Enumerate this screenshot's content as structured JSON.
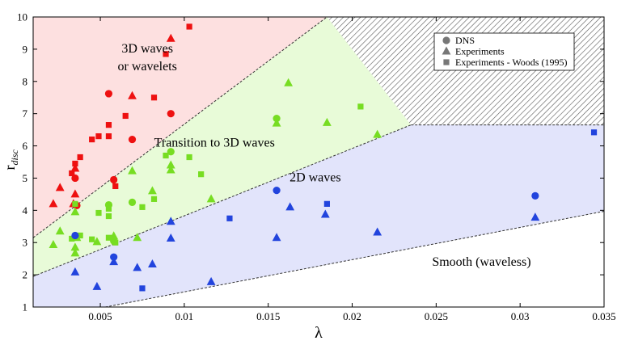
{
  "chart_data": {
    "type": "scatter",
    "title": "",
    "xlabel": "λ",
    "ylabel_main": "r",
    "ylabel_sub": "disc",
    "xlim": [
      0.001,
      0.035
    ],
    "ylim": [
      1,
      10
    ],
    "xticks": [
      0.005,
      0.01,
      0.015,
      0.02,
      0.025,
      0.03,
      0.035
    ],
    "xtick_labels": [
      "0.005",
      "0.01",
      "0.015",
      "0.02",
      "0.025",
      "0.03",
      "0.035"
    ],
    "yticks": [
      1,
      2,
      3,
      4,
      5,
      6,
      7,
      8,
      9,
      10
    ],
    "ytick_labels": [
      "1",
      "2",
      "3",
      "4",
      "5",
      "6",
      "7",
      "8",
      "9",
      "10"
    ],
    "grid": false,
    "legend": {
      "position": "top-right",
      "entries": [
        {
          "marker": "circle",
          "label": "DNS"
        },
        {
          "marker": "triangle",
          "label": "Experiments"
        },
        {
          "marker": "square",
          "label": "Experiments - Woods (1995)"
        }
      ]
    },
    "colors": {
      "red_points": "#ee1111",
      "green_points": "#77dd22",
      "blue_points": "#2244dd",
      "red_region": "#fde0e0",
      "green_region": "#e8fbd8",
      "blue_region": "#e2e4fb",
      "hatch": "#555555",
      "boundary": "#333333"
    },
    "boundaries": [
      {
        "name": "upper",
        "x": [
          0.001,
          0.0185
        ],
        "y": [
          3.15,
          10
        ]
      },
      {
        "name": "middle",
        "x": [
          0.001,
          0.0235
        ],
        "y": [
          1.95,
          6.65
        ]
      },
      {
        "name": "plateau",
        "x": [
          0.0235,
          0.035
        ],
        "y": [
          6.65,
          6.65
        ]
      },
      {
        "name": "lower",
        "x": [
          0.0053,
          0.035
        ],
        "y": [
          1,
          3.97
        ]
      }
    ],
    "regions": [
      {
        "label_lines": [
          "3D waves",
          "or wavelets"
        ],
        "color": "red"
      },
      {
        "label_lines": [
          "Transition to 3D waves"
        ],
        "color": "green"
      },
      {
        "label_lines": [
          "2D waves"
        ],
        "color": "blue"
      },
      {
        "label_lines": [
          "Smooth (waveless)"
        ],
        "color": "white"
      }
    ],
    "series": [
      {
        "color": "red",
        "points": [
          {
            "x": 0.0055,
            "y": 7.62,
            "marker": "circle"
          },
          {
            "x": 0.0069,
            "y": 6.2,
            "marker": "circle"
          },
          {
            "x": 0.0092,
            "y": 7.0,
            "marker": "circle"
          },
          {
            "x": 0.0058,
            "y": 4.95,
            "marker": "circle"
          },
          {
            "x": 0.0035,
            "y": 5.0,
            "marker": "circle"
          },
          {
            "x": 0.0036,
            "y": 4.15,
            "marker": "circle"
          },
          {
            "x": 0.0092,
            "y": 9.33,
            "marker": "triangle"
          },
          {
            "x": 0.0069,
            "y": 7.55,
            "marker": "triangle"
          },
          {
            "x": 0.0035,
            "y": 5.3,
            "marker": "triangle"
          },
          {
            "x": 0.0026,
            "y": 4.7,
            "marker": "triangle"
          },
          {
            "x": 0.0035,
            "y": 4.5,
            "marker": "triangle"
          },
          {
            "x": 0.0022,
            "y": 4.2,
            "marker": "triangle"
          },
          {
            "x": 0.0034,
            "y": 4.2,
            "marker": "triangle"
          },
          {
            "x": 0.0103,
            "y": 9.7,
            "marker": "square"
          },
          {
            "x": 0.0089,
            "y": 8.85,
            "marker": "square"
          },
          {
            "x": 0.0082,
            "y": 7.5,
            "marker": "square"
          },
          {
            "x": 0.0055,
            "y": 6.65,
            "marker": "square"
          },
          {
            "x": 0.0065,
            "y": 6.93,
            "marker": "square"
          },
          {
            "x": 0.0045,
            "y": 6.2,
            "marker": "square"
          },
          {
            "x": 0.0049,
            "y": 6.3,
            "marker": "square"
          },
          {
            "x": 0.0055,
            "y": 6.3,
            "marker": "square"
          },
          {
            "x": 0.0038,
            "y": 5.65,
            "marker": "square"
          },
          {
            "x": 0.0035,
            "y": 5.45,
            "marker": "square"
          },
          {
            "x": 0.0033,
            "y": 5.15,
            "marker": "square"
          },
          {
            "x": 0.0059,
            "y": 4.75,
            "marker": "square"
          }
        ]
      },
      {
        "color": "green",
        "points": [
          {
            "x": 0.0155,
            "y": 6.85,
            "marker": "circle"
          },
          {
            "x": 0.0092,
            "y": 5.82,
            "marker": "circle"
          },
          {
            "x": 0.0055,
            "y": 4.17,
            "marker": "circle"
          },
          {
            "x": 0.0069,
            "y": 4.25,
            "marker": "circle"
          },
          {
            "x": 0.0058,
            "y": 3.05,
            "marker": "circle"
          },
          {
            "x": 0.0162,
            "y": 7.95,
            "marker": "triangle"
          },
          {
            "x": 0.0155,
            "y": 6.7,
            "marker": "triangle"
          },
          {
            "x": 0.0185,
            "y": 6.72,
            "marker": "triangle"
          },
          {
            "x": 0.0215,
            "y": 6.35,
            "marker": "triangle"
          },
          {
            "x": 0.0092,
            "y": 5.4,
            "marker": "triangle"
          },
          {
            "x": 0.0092,
            "y": 5.25,
            "marker": "triangle"
          },
          {
            "x": 0.0069,
            "y": 5.22,
            "marker": "triangle"
          },
          {
            "x": 0.0081,
            "y": 4.6,
            "marker": "triangle"
          },
          {
            "x": 0.0116,
            "y": 4.35,
            "marker": "triangle"
          },
          {
            "x": 0.0035,
            "y": 3.95,
            "marker": "triangle"
          },
          {
            "x": 0.0026,
            "y": 3.35,
            "marker": "triangle"
          },
          {
            "x": 0.0036,
            "y": 3.15,
            "marker": "triangle"
          },
          {
            "x": 0.0048,
            "y": 3.02,
            "marker": "triangle"
          },
          {
            "x": 0.0058,
            "y": 3.2,
            "marker": "triangle"
          },
          {
            "x": 0.0072,
            "y": 3.15,
            "marker": "triangle"
          },
          {
            "x": 0.0022,
            "y": 2.93,
            "marker": "triangle"
          },
          {
            "x": 0.0035,
            "y": 2.85,
            "marker": "triangle"
          },
          {
            "x": 0.0035,
            "y": 2.67,
            "marker": "triangle"
          },
          {
            "x": 0.0205,
            "y": 7.22,
            "marker": "square"
          },
          {
            "x": 0.0089,
            "y": 5.7,
            "marker": "square"
          },
          {
            "x": 0.0103,
            "y": 5.65,
            "marker": "square"
          },
          {
            "x": 0.011,
            "y": 5.12,
            "marker": "square"
          },
          {
            "x": 0.0035,
            "y": 4.2,
            "marker": "square"
          },
          {
            "x": 0.0055,
            "y": 4.05,
            "marker": "square"
          },
          {
            "x": 0.0075,
            "y": 4.1,
            "marker": "square"
          },
          {
            "x": 0.0082,
            "y": 4.35,
            "marker": "square"
          },
          {
            "x": 0.0049,
            "y": 3.92,
            "marker": "square"
          },
          {
            "x": 0.0055,
            "y": 3.82,
            "marker": "square"
          },
          {
            "x": 0.0038,
            "y": 3.22,
            "marker": "square"
          },
          {
            "x": 0.0045,
            "y": 3.1,
            "marker": "square"
          },
          {
            "x": 0.0055,
            "y": 3.15,
            "marker": "square"
          },
          {
            "x": 0.0033,
            "y": 3.12,
            "marker": "square"
          },
          {
            "x": 0.0059,
            "y": 3.0,
            "marker": "square"
          }
        ]
      },
      {
        "color": "blue",
        "points": [
          {
            "x": 0.0155,
            "y": 4.62,
            "marker": "circle"
          },
          {
            "x": 0.0309,
            "y": 4.45,
            "marker": "circle"
          },
          {
            "x": 0.0058,
            "y": 2.55,
            "marker": "circle"
          },
          {
            "x": 0.0035,
            "y": 3.22,
            "marker": "circle"
          },
          {
            "x": 0.0163,
            "y": 4.1,
            "marker": "triangle"
          },
          {
            "x": 0.0184,
            "y": 3.87,
            "marker": "triangle"
          },
          {
            "x": 0.0309,
            "y": 3.78,
            "marker": "triangle"
          },
          {
            "x": 0.0092,
            "y": 3.65,
            "marker": "triangle"
          },
          {
            "x": 0.0215,
            "y": 3.32,
            "marker": "triangle"
          },
          {
            "x": 0.0155,
            "y": 3.15,
            "marker": "triangle"
          },
          {
            "x": 0.0092,
            "y": 3.13,
            "marker": "triangle"
          },
          {
            "x": 0.0058,
            "y": 2.4,
            "marker": "triangle"
          },
          {
            "x": 0.0081,
            "y": 2.33,
            "marker": "triangle"
          },
          {
            "x": 0.0072,
            "y": 2.22,
            "marker": "triangle"
          },
          {
            "x": 0.0035,
            "y": 2.08,
            "marker": "triangle"
          },
          {
            "x": 0.0048,
            "y": 1.63,
            "marker": "triangle"
          },
          {
            "x": 0.0116,
            "y": 1.78,
            "marker": "triangle"
          },
          {
            "x": 0.0344,
            "y": 6.42,
            "marker": "square"
          },
          {
            "x": 0.0185,
            "y": 4.2,
            "marker": "square"
          },
          {
            "x": 0.0127,
            "y": 3.75,
            "marker": "square"
          },
          {
            "x": 0.0075,
            "y": 1.58,
            "marker": "square"
          }
        ]
      }
    ]
  }
}
